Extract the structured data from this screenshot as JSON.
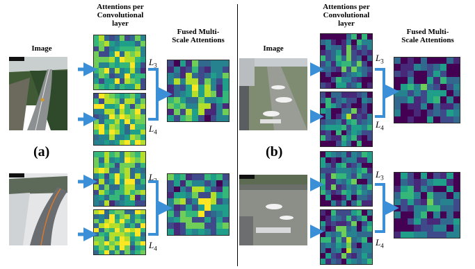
{
  "headers": {
    "image": "Image",
    "attn": "Attentions per Convolutional layer",
    "fused": "Fused Multi-Scale Attentions"
  },
  "panels": {
    "a": "(a)",
    "b": "(b)"
  },
  "layer_labels": {
    "l3": "L",
    "l3_sub": "3",
    "l4": "L",
    "l4_sub": "4"
  },
  "colors": {
    "arrow": "#3a8fd6",
    "viridis": [
      "#440154",
      "#482878",
      "#3e4a89",
      "#31688e",
      "#26828e",
      "#1f9e89",
      "#35b779",
      "#6ece58",
      "#b5de2b",
      "#fde725"
    ]
  }
}
